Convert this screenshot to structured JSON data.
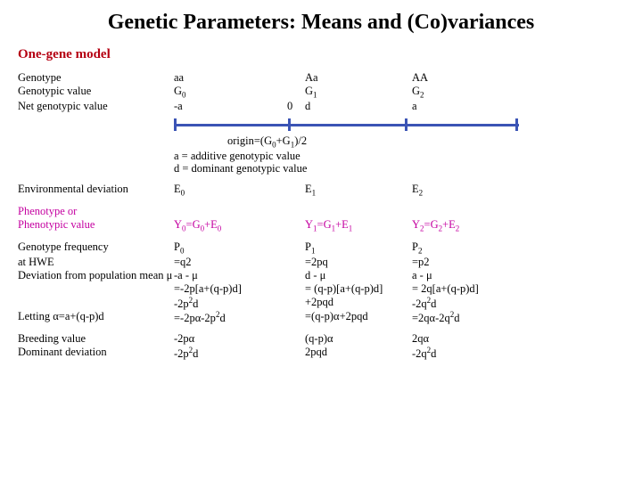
{
  "colors": {
    "black": "#000000",
    "red": "#b50012",
    "magenta": "#c400a0",
    "axis": "#3b54b5"
  },
  "title": "Genetic Parameters: Means and (Co)variances",
  "subtitle": "One-gene model",
  "rows": {
    "genotype": {
      "label": "Genotype",
      "c0": "aa",
      "cMid": "",
      "c1": "Aa",
      "c2": "AA"
    },
    "genotypic_value": {
      "label": "Genotypic value",
      "c0": "G",
      "c0sub": "0",
      "cMid": "",
      "c1": "G",
      "c1sub": "1",
      "c2": "G",
      "c2sub": "2"
    },
    "net_genotypic": {
      "label": "Net genotypic value",
      "c0": "-a",
      "cMid": "0",
      "c1": "d",
      "c2": "a"
    }
  },
  "origin_label": "origin=(G",
  "origin_sub1": "0",
  "origin_mid": "+G",
  "origin_sub2": "1",
  "origin_end": ")/2",
  "def_a": "a = additive genotypic value",
  "def_d": "d = dominant genotypic value",
  "env": {
    "label": "Environmental deviation",
    "c0": "E",
    "c0sub": "0",
    "c1": "E",
    "c1sub": "1",
    "c2": "E",
    "c2sub": "2"
  },
  "pheno": {
    "label1": "Phenotype or",
    "label2": "Phenotypic value",
    "c0a": "Y",
    "c0as": "0",
    "c0b": "=G",
    "c0bs": "0",
    "c0c": "+E",
    "c0cs": "0",
    "c1a": "Y",
    "c1as": "1",
    "c1b": "=G",
    "c1bs": "1",
    "c1c": "+E",
    "c1cs": "1",
    "c2a": "Y",
    "c2as": "2",
    "c2b": "=G",
    "c2bs": "2",
    "c2c": "+E",
    "c2cs": "2"
  },
  "freq": {
    "l1": "Genotype frequency",
    "l2": "at HWE",
    "l3": "Deviation from population mean μ",
    "l4": "",
    "l5": "",
    "l6": "Letting α=a+(q-p)d",
    "c0": [
      "P",
      "=q2",
      "-a - μ",
      "=-2p[a+(q-p)d]",
      "   -2p",
      "=-2pα-2p"
    ],
    "c0sub": [
      "0",
      "",
      "",
      "",
      "2",
      "2"
    ],
    "c0suf": [
      "",
      "",
      "",
      "",
      "d",
      "d"
    ],
    "c1": [
      "P",
      "=2pq",
      "d - μ",
      "= (q-p)[a+(q-p)d]",
      "   +2pqd",
      "=(q-p)α+2pqd"
    ],
    "c1sub": [
      "1",
      "",
      "",
      "",
      "",
      ""
    ],
    "c2": [
      "P",
      "=p2",
      "a - μ",
      "= 2q[a+(q-p)d]",
      "   -2q",
      "=2qα-2q"
    ],
    "c2sub": [
      "2",
      "",
      "",
      "",
      "2",
      "2"
    ],
    "c2suf": [
      "",
      "",
      "",
      "",
      "d",
      "d"
    ]
  },
  "breed": {
    "l1": "Breeding value",
    "l2": "Dominant deviation",
    "c0": [
      "-2pα",
      "-2p"
    ],
    "c0sup": [
      "",
      "2"
    ],
    "c0suf": [
      "",
      "d"
    ],
    "c1": [
      "(q-p)α",
      "2pqd"
    ],
    "c2": [
      "2qα",
      "-2q"
    ],
    "c2sup": [
      "",
      "2"
    ],
    "c2suf": [
      "",
      "d"
    ]
  }
}
